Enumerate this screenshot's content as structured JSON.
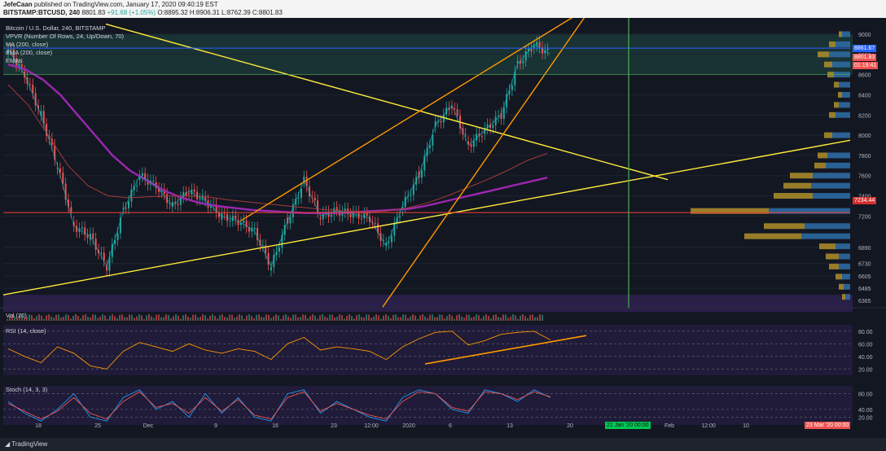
{
  "header": {
    "author": "JefeCaan",
    "published": "published on TradingView.com, January 17, 2020 09:40:19 EST",
    "symbol": "BITSTAMP:BTCUSD, 240",
    "last": "8801.83",
    "change": "+91.68 (+1.05%)",
    "ohlc": "O:8895.32 H:8906.31 L:8762.39 C:8801.83"
  },
  "legend": {
    "title": "Bitcoin / U.S. Dollar, 240, BITSTAMP",
    "vpvr": "VPVR (Number Of Rows, 24, Up/Down, 70)",
    "ma": "MA (200, close)",
    "ema": "EMA (200, close)",
    "emas": "EMAs"
  },
  "price_tags": {
    "line1": "8861.67",
    "line2": "8801.83",
    "countdown": "01:19:41",
    "support": "7234.44"
  },
  "panes": {
    "vol": "Vol (20)",
    "rsi": "RSI (14, close)",
    "stoch": "Stoch (14, 3, 3)"
  },
  "time_tags": {
    "start": "21 Jan '20  00:00",
    "end": "23 Mar '20  00:00"
  },
  "footer": {
    "brand": "TradingView"
  },
  "colors": {
    "background": "#131722",
    "up": "#26a69a",
    "down": "#ef5350",
    "trendline_yellow": "#ffeb3b",
    "channel_orange": "#ff9800",
    "ema_purple": "#9c27b0",
    "vertical_green": "#4caf50",
    "support_red": "#f44336",
    "oscillator_band": "#2a1f4a"
  },
  "chart_data": [
    {
      "type": "line",
      "title": "Bitcoin / U.S. Dollar, 240, BITSTAMP",
      "x_ticks": [
        "18",
        "25",
        "Dec",
        "9",
        "16",
        "23",
        "12:00",
        "2020",
        "6",
        "13",
        "20",
        "Feb",
        "12:00",
        "10"
      ],
      "y_ticks": [
        9000,
        8800,
        8600,
        8400,
        8200,
        8000,
        7800,
        7600,
        7400,
        7200,
        6890,
        6730,
        6605,
        6485,
        6365
      ],
      "ylim": [
        6365,
        9000
      ],
      "series": [
        {
          "name": "BTCUSD",
          "values": [
            8850,
            8600,
            8200,
            7700,
            7100,
            7000,
            6700,
            7250,
            7600,
            7500,
            7300,
            7450,
            7350,
            7200,
            7150,
            7050,
            6700,
            7150,
            7550,
            7200,
            7250,
            7220,
            7180,
            6900,
            7300,
            7600,
            8100,
            8300,
            7900,
            8050,
            8200,
            8700,
            8900,
            8801
          ]
        },
        {
          "name": "EMA (200, close)",
          "values": [
            8700,
            8650,
            8550,
            8400,
            8200,
            8000,
            7800,
            7650,
            7550,
            7450,
            7380,
            7330,
            7300,
            7280,
            7260,
            7250,
            7240,
            7230,
            7230,
            7230,
            7240,
            7250,
            7260,
            7270,
            7300,
            7340,
            7380,
            7420,
            7460,
            7500,
            7540,
            7580
          ]
        },
        {
          "name": "MA (200, close)",
          "values": [
            8500,
            8300,
            8000,
            7700,
            7500,
            7400,
            7380,
            7390,
            7400,
            7400,
            7390,
            7360,
            7340,
            7320,
            7300,
            7280,
            7260,
            7250,
            7240,
            7250,
            7280,
            7330,
            7400,
            7480,
            7560,
            7650,
            7750,
            7820
          ]
        }
      ],
      "levels": {
        "current": 8861.67,
        "last": 8801.83,
        "support": 7234.44
      },
      "volume_profile": [
        {
          "price": 9000,
          "up": 4,
          "down": 10
        },
        {
          "price": 8900,
          "up": 8,
          "down": 18
        },
        {
          "price": 8800,
          "up": 14,
          "down": 26
        },
        {
          "price": 8700,
          "up": 10,
          "down": 22
        },
        {
          "price": 8600,
          "up": 8,
          "down": 20
        },
        {
          "price": 8500,
          "up": 6,
          "down": 14
        },
        {
          "price": 8400,
          "up": 5,
          "down": 10
        },
        {
          "price": 8300,
          "up": 6,
          "down": 14
        },
        {
          "price": 8200,
          "up": 8,
          "down": 18
        },
        {
          "price": 8000,
          "up": 10,
          "down": 22
        },
        {
          "price": 7800,
          "up": 12,
          "down": 28
        },
        {
          "price": 7700,
          "up": 14,
          "down": 30
        },
        {
          "price": 7600,
          "up": 28,
          "down": 46
        },
        {
          "price": 7500,
          "up": 34,
          "down": 48
        },
        {
          "price": 7400,
          "up": 48,
          "down": 46
        },
        {
          "price": 7250,
          "up": 96,
          "down": 100
        },
        {
          "price": 7100,
          "up": 50,
          "down": 56
        },
        {
          "price": 7000,
          "up": 70,
          "down": 60
        },
        {
          "price": 6900,
          "up": 20,
          "down": 18
        },
        {
          "price": 6800,
          "up": 16,
          "down": 14
        },
        {
          "price": 6700,
          "up": 12,
          "down": 14
        },
        {
          "price": 6600,
          "up": 8,
          "down": 10
        },
        {
          "price": 6500,
          "up": 6,
          "down": 8
        },
        {
          "price": 6400,
          "up": 4,
          "down": 6
        }
      ]
    },
    {
      "type": "line",
      "title": "RSI (14, close)",
      "y_ticks": [
        80,
        60,
        40,
        20
      ],
      "ylim": [
        10,
        90
      ],
      "series": [
        {
          "name": "RSI",
          "values": [
            52,
            40,
            30,
            55,
            45,
            25,
            20,
            48,
            62,
            55,
            48,
            60,
            50,
            45,
            52,
            48,
            35,
            60,
            70,
            50,
            55,
            52,
            48,
            35,
            55,
            68,
            78,
            80,
            58,
            65,
            75,
            78,
            80,
            66
          ]
        }
      ]
    },
    {
      "type": "line",
      "title": "Stoch (14, 3, 3)",
      "y_ticks": [
        80,
        40,
        20
      ],
      "ylim": [
        0,
        100
      ],
      "series": [
        {
          "name": "%K",
          "values": [
            60,
            30,
            10,
            40,
            80,
            20,
            10,
            70,
            90,
            40,
            60,
            20,
            80,
            30,
            70,
            20,
            10,
            80,
            90,
            30,
            60,
            40,
            20,
            10,
            70,
            90,
            80,
            40,
            30,
            90,
            80,
            60,
            90,
            70
          ]
        },
        {
          "name": "%D",
          "values": [
            55,
            35,
            15,
            35,
            70,
            30,
            15,
            60,
            85,
            45,
            55,
            30,
            70,
            35,
            65,
            25,
            15,
            70,
            85,
            35,
            55,
            40,
            25,
            15,
            60,
            85,
            80,
            45,
            35,
            85,
            80,
            65,
            85,
            72
          ]
        }
      ]
    }
  ]
}
